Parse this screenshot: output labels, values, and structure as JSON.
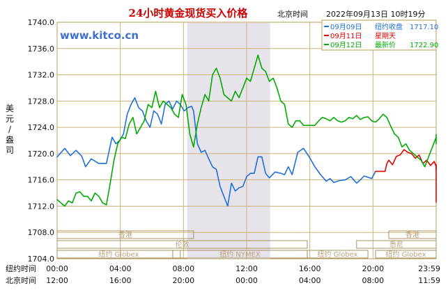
{
  "chart_data": {
    "type": "line",
    "title": "24小时黄金现货买入价格",
    "location": "北京时间",
    "datetime": "2022年09月13日 10时19分",
    "watermark": "www.kitco.cn",
    "ylabel": "美元/盎司",
    "ylim": [
      1704,
      1740
    ],
    "yticks": [
      "1740.0",
      "1736.0",
      "1732.0",
      "1728.0",
      "1724.0",
      "1720.0",
      "1716.0",
      "1712.0",
      "1708.0",
      "1704.0"
    ],
    "x_tick_count": 7,
    "ny_label": "纽约时间",
    "ny_ticks": [
      "00:00",
      "04:00",
      "08:00",
      "12:00",
      "16:00",
      "20:00",
      "23:59"
    ],
    "bj_label": "北京时间",
    "bj_ticks": [
      "12:00",
      "16:00",
      "20:00",
      "00:00",
      "04:00",
      "08:00",
      "11:59"
    ],
    "legend": [
      {
        "date": "09月09日",
        "label": "纽约收盘",
        "value": "1717.10",
        "color": "#1e6fd9"
      },
      {
        "date": "09月11日",
        "label": "星期天",
        "value": "",
        "color": "#e00000"
      },
      {
        "date": "09月12日",
        "label": "最新价",
        "value": "1722.90",
        "color": "#00aa00"
      }
    ],
    "markets": [
      {
        "name": "香港",
        "start": 0.0,
        "end": 0.36,
        "row": 0
      },
      {
        "name": "伦敦",
        "start": 0.0,
        "end": 0.66,
        "row": 1
      },
      {
        "name": "纽约 NYMEX",
        "start": 0.305,
        "end": 0.66,
        "row": 2
      },
      {
        "name": "纽约 Globex",
        "start": 0.0,
        "end": 0.325,
        "row": 2
      },
      {
        "name": "纽约 Globex",
        "start": 0.66,
        "end": 0.82,
        "row": 2
      },
      {
        "name": "香港",
        "start": 0.875,
        "end": 1.0,
        "row": 0
      },
      {
        "name": "悉尼",
        "start": 0.79,
        "end": 1.0,
        "row": 1
      },
      {
        "name": "纽约 Globex",
        "start": 0.84,
        "end": 1.0,
        "row": 2
      }
    ],
    "shaded_range": [
      0.343,
      0.562
    ],
    "series": [
      {
        "name": "09月09日",
        "color": "#1e6fd9",
        "x": [
          0.0,
          0.02,
          0.035,
          0.05,
          0.065,
          0.075,
          0.09,
          0.11,
          0.13,
          0.145,
          0.155,
          0.165,
          0.175,
          0.185,
          0.195,
          0.205,
          0.215,
          0.225,
          0.235,
          0.245,
          0.255,
          0.265,
          0.275,
          0.285,
          0.295,
          0.305,
          0.315,
          0.325,
          0.335,
          0.345,
          0.355,
          0.36,
          0.37,
          0.38,
          0.39,
          0.4,
          0.41,
          0.42,
          0.43,
          0.44,
          0.45,
          0.46,
          0.47,
          0.48,
          0.49,
          0.5,
          0.51,
          0.52,
          0.53,
          0.54,
          0.55,
          0.56,
          0.575,
          0.59,
          0.6,
          0.61,
          0.62,
          0.635,
          0.65,
          0.665,
          0.68,
          0.695,
          0.71,
          0.72,
          0.73
        ],
        "y": [
          1719.5,
          1720.8,
          1719.7,
          1720.5,
          1719.6,
          1718.0,
          1719.2,
          1718.5,
          1718.5,
          1722.5,
          1721.5,
          1722.0,
          1723.0,
          1726.0,
          1727.5,
          1728.5,
          1727.0,
          1726.5,
          1725.0,
          1724.0,
          1726.5,
          1726.0,
          1724.5,
          1727.5,
          1728.0,
          1726.8,
          1728.0,
          1727.5,
          1726.5,
          1727.0,
          1727.2,
          1726.5,
          1721.5,
          1720.2,
          1720.5,
          1719.2,
          1718.0,
          1717.6,
          1715.0,
          1713.5,
          1712.0,
          1715.5,
          1714.3,
          1714.8,
          1715.0,
          1716.5,
          1717.0,
          1717.0,
          1719.5,
          1719.5,
          1717.0,
          1716.3,
          1717.2,
          1717.0,
          1716.8,
          1718.0,
          1716.8,
          1720.2,
          1720.8,
          1719.5,
          1718.0,
          1716.8,
          1715.8,
          1716.2,
          1715.6
        ]
      },
      {
        "name": "09月09日-tail",
        "color": "#1e6fd9",
        "x": [
          0.73,
          0.745,
          0.76,
          0.775,
          0.79,
          0.8,
          0.81,
          0.82,
          0.83,
          0.84
        ],
        "y": [
          1715.6,
          1715.9,
          1716.0,
          1716.5,
          1715.5,
          1716.0,
          1716.6,
          1716.4,
          1716.2,
          1717.3
        ]
      },
      {
        "name": "09月11日",
        "color": "#e00000",
        "x": [
          0.84,
          0.865,
          0.87,
          0.875,
          0.885,
          0.895,
          0.905,
          0.915,
          0.925,
          0.935,
          0.945,
          0.955,
          0.965,
          0.975,
          0.985,
          0.995,
          1.005,
          1.015,
          1.025
        ],
        "y": [
          1717.3,
          1717.3,
          1718.5,
          1719.0,
          1718.3,
          1719.6,
          1719.8,
          1720.6,
          1720.2,
          1720.0,
          1719.3,
          1719.8,
          1718.5,
          1719.0,
          1718.2,
          1718.8,
          1718.0,
          1717.6,
          1718.3
        ]
      },
      {
        "name": "09月12日",
        "color": "#00aa00",
        "x": [
          0.0,
          0.01,
          0.02,
          0.03,
          0.04,
          0.05,
          0.06,
          0.07,
          0.08,
          0.09,
          0.1,
          0.11,
          0.12,
          0.13,
          0.14,
          0.15,
          0.16,
          0.17,
          0.18,
          0.19,
          0.2,
          0.21,
          0.22,
          0.23,
          0.24,
          0.25,
          0.26,
          0.27,
          0.28,
          0.29,
          0.3,
          0.31,
          0.32,
          0.33,
          0.34,
          0.35,
          0.36,
          0.37,
          0.38,
          0.39,
          0.4,
          0.41,
          0.42,
          0.43,
          0.44,
          0.45,
          0.46,
          0.47,
          0.48,
          0.49,
          0.5,
          0.51,
          0.52,
          0.53,
          0.54,
          0.55,
          0.56,
          0.57,
          0.58,
          0.59,
          0.6,
          0.61,
          0.62,
          0.63,
          0.64,
          0.65,
          0.66,
          0.67,
          0.68,
          0.69,
          0.7,
          0.71,
          0.72,
          0.73,
          0.74,
          0.75,
          0.76,
          0.77,
          0.78,
          0.79,
          0.8,
          0.81,
          0.82
        ],
        "y": [
          1713.0,
          1712.5,
          1712.0,
          1712.8,
          1712.5,
          1714.0,
          1714.2,
          1713.5,
          1713.5,
          1712.8,
          1714.0,
          1713.5,
          1712.5,
          1712.2,
          1715.5,
          1719.0,
          1721.5,
          1722.5,
          1722.3,
          1724.5,
          1725.5,
          1723.0,
          1724.0,
          1725.0,
          1727.5,
          1727.0,
          1729.5,
          1727.0,
          1728.0,
          1727.5,
          1727.0,
          1726.0,
          1725.5,
          1729.0,
          1727.5,
          1723.0,
          1721.0,
          1724.5,
          1727.0,
          1729.0,
          1728.0,
          1732.0,
          1733.0,
          1731.5,
          1729.0,
          1728.5,
          1728.0,
          1729.5,
          1728.5,
          1730.0,
          1731.5,
          1731.0,
          1733.0,
          1735.0,
          1733.0,
          1732.5,
          1731.0,
          1731.5,
          1730.0,
          1728.0,
          1727.5,
          1724.5,
          1724.0,
          1725.0,
          1725.0,
          1724.3,
          1724.3,
          1724.3,
          1724.3,
          1725.0,
          1725.5,
          1725.3,
          1725.0,
          1725.5,
          1725.0,
          1724.8,
          1725.0,
          1725.5,
          1725.3,
          1725.8,
          1725.2,
          1725.5,
          1725.6
        ]
      },
      {
        "name": "09月12日-tail",
        "color": "#00aa00",
        "x": [
          0.82,
          0.83,
          0.84,
          0.85,
          0.86,
          0.87,
          0.88,
          0.89,
          0.9,
          0.91,
          0.92,
          0.93,
          0.94,
          0.95,
          0.96,
          0.97,
          0.98,
          0.99,
          1.0,
          1.01,
          1.02,
          1.03
        ],
        "y": [
          1725.6,
          1725.0,
          1724.8,
          1725.3,
          1726.0,
          1725.5,
          1724.2,
          1723.0,
          1722.5,
          1721.0,
          1721.5,
          1720.5,
          1720.0,
          1719.5,
          1719.0,
          1718.0,
          1719.5,
          1721.0,
          1722.5,
          1721.5,
          1722.9,
          1722.9
        ]
      },
      {
        "name": "09月11日-tail",
        "color": "#e00000",
        "x": [
          1.025,
          1.035,
          1.045,
          1.055,
          1.065,
          1.075,
          1.085,
          1.095,
          1.105,
          1.115,
          1.125,
          1.135,
          1.145,
          1.155,
          1.165,
          1.175,
          1.185,
          1.195
        ],
        "y": [
          1718.3,
          1717.5,
          1716.8,
          1717.2,
          1716.5,
          1715.8,
          1715.0,
          1715.3,
          1714.8,
          1714.0,
          1713.5,
          1713.8,
          1713.0,
          1712.8,
          1713.2,
          1712.6,
          1713.0,
          1713.5
        ]
      }
    ]
  }
}
